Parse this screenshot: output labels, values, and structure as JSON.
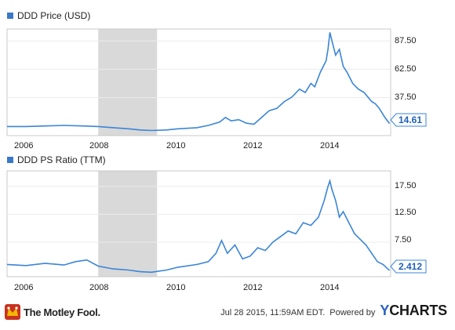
{
  "colors": {
    "line": "#3a85d8",
    "recession": "#d9d9d9",
    "plot_border": "#c8c8c8",
    "legend_square": "#3a78c9",
    "badge_text": "#1f5fb8",
    "badge_border": "#3a85d8"
  },
  "chart_data": [
    {
      "type": "line",
      "legend": "DDD Price (USD)",
      "x_ticks": [
        "2006",
        "2008",
        "2010",
        "2012",
        "2014"
      ],
      "y_ticks": [
        "87.50",
        "62.50",
        "37.50"
      ],
      "ylim": [
        4,
        98
      ],
      "xlim": [
        2005.5,
        2015.6
      ],
      "recession": [
        2007.9,
        2009.45
      ],
      "last_value": "14.61",
      "series": [
        {
          "x": [
            2005.5,
            2006.0,
            2006.5,
            2007.0,
            2007.5,
            2007.9,
            2008.3,
            2008.7,
            2009.0,
            2009.3,
            2009.7,
            2010.0,
            2010.5,
            2010.8,
            2011.1,
            2011.25,
            2011.4,
            2011.6,
            2011.8,
            2012.0,
            2012.2,
            2012.4,
            2012.6,
            2012.8,
            2013.0,
            2013.2,
            2013.35,
            2013.5,
            2013.6,
            2013.75,
            2013.9,
            2013.95,
            2014.0,
            2014.05,
            2014.15,
            2014.25,
            2014.35,
            2014.45,
            2014.6,
            2014.75,
            2014.9,
            2015.0,
            2015.1,
            2015.2,
            2015.3,
            2015.45,
            2015.57
          ],
          "y": [
            12,
            12,
            12.5,
            13,
            12.5,
            12,
            11,
            10,
            9,
            8.5,
            9,
            10,
            11,
            13,
            16,
            20,
            17,
            18,
            15,
            14,
            20,
            26,
            28,
            34,
            38,
            45,
            42,
            50,
            47,
            60,
            70,
            80,
            95,
            88,
            75,
            80,
            65,
            60,
            50,
            45,
            42,
            38,
            34,
            32,
            28,
            20,
            14.61
          ]
        }
      ]
    },
    {
      "type": "line",
      "legend": "DDD PS Ratio (TTM)",
      "x_ticks": [
        "2006",
        "2008",
        "2010",
        "2012",
        "2014"
      ],
      "y_ticks": [
        "17.50",
        "12.50",
        "7.50"
      ],
      "ylim": [
        1.3,
        20.3
      ],
      "xlim": [
        2005.5,
        2015.6
      ],
      "recession": [
        2007.9,
        2009.45
      ],
      "last_value": "2.412",
      "series": [
        {
          "x": [
            2005.5,
            2006.0,
            2006.5,
            2007.0,
            2007.3,
            2007.6,
            2007.9,
            2008.3,
            2008.7,
            2009.0,
            2009.3,
            2009.7,
            2010.0,
            2010.5,
            2010.8,
            2011.0,
            2011.15,
            2011.3,
            2011.5,
            2011.7,
            2011.9,
            2012.1,
            2012.3,
            2012.5,
            2012.7,
            2012.9,
            2013.1,
            2013.3,
            2013.5,
            2013.7,
            2013.85,
            2013.95,
            2014.0,
            2014.05,
            2014.15,
            2014.25,
            2014.35,
            2014.5,
            2014.65,
            2014.8,
            2014.95,
            2015.1,
            2015.25,
            2015.4,
            2015.57
          ],
          "y": [
            3.5,
            3.3,
            3.7,
            3.4,
            4.0,
            4.3,
            3.2,
            2.7,
            2.5,
            2.2,
            2.1,
            2.5,
            3.0,
            3.5,
            4.0,
            5.5,
            7.8,
            5.5,
            7.0,
            4.5,
            5.0,
            6.5,
            6.0,
            7.5,
            8.5,
            9.5,
            9.0,
            11.0,
            10.5,
            12.0,
            15.0,
            17.5,
            18.5,
            17.0,
            15.0,
            12.0,
            13.0,
            11.0,
            9.0,
            8.0,
            7.0,
            5.5,
            4.0,
            3.5,
            2.412
          ]
        }
      ]
    }
  ],
  "footer": {
    "brand": "The Motley Fool.",
    "timestamp": "Jul 28 2015, 11:59AM EDT.",
    "powered_by": "Powered by",
    "ycharts_y": "Y",
    "ycharts_rest": "CHARTS"
  }
}
